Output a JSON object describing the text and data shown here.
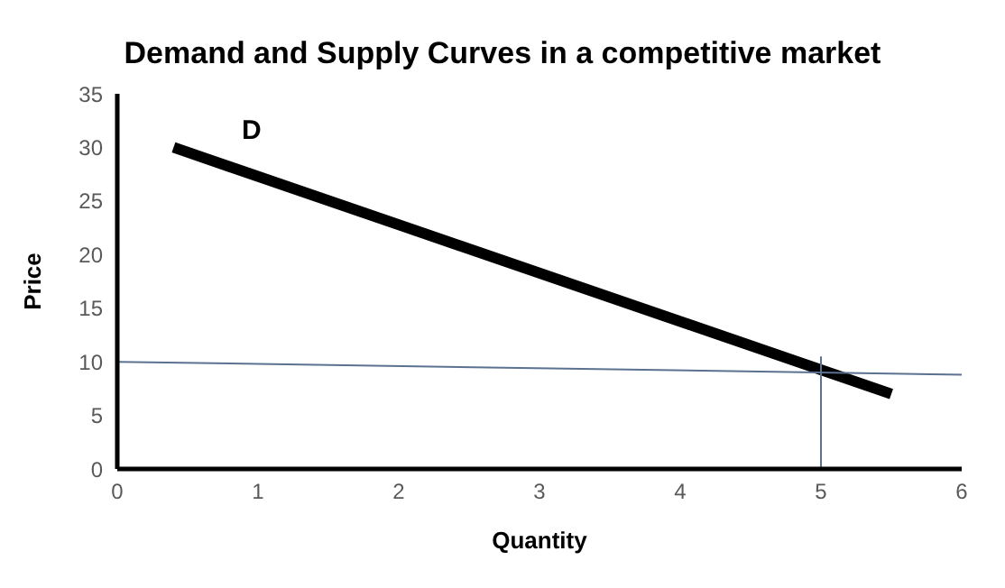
{
  "chart_data": {
    "type": "line",
    "title": "Demand and Supply Curves in a competitive market",
    "xlabel": "Quantity",
    "ylabel": "Price",
    "xlim": [
      0,
      6
    ],
    "xticks": [
      0,
      1,
      2,
      3,
      4,
      5,
      6
    ],
    "ylim": [
      0,
      35
    ],
    "yticks": [
      0,
      5,
      10,
      15,
      20,
      25,
      30,
      35
    ],
    "grid": false,
    "legend": false,
    "marker": "none",
    "series": [
      {
        "color": "#000000",
        "x": [
          0.4,
          5.5
        ],
        "values": [
          30,
          7
        ]
      },
      {
        "color": "#5b7190",
        "x": [
          0,
          6
        ],
        "values": [
          10,
          8.8
        ]
      },
      {
        "color": "#5b7190",
        "x": [
          5,
          5
        ],
        "values": [
          0,
          10.5
        ]
      }
    ],
    "annotations": [
      "D"
    ]
  }
}
